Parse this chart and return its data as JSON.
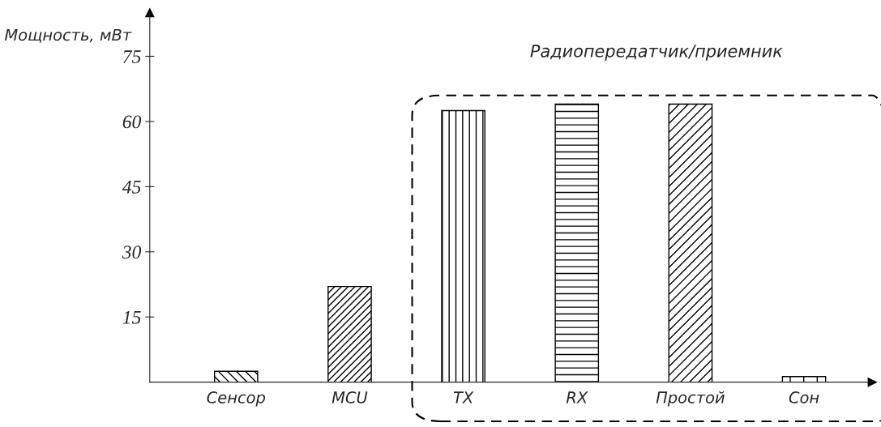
{
  "chart_data": {
    "type": "bar",
    "ylabel": "Мощность, мВт",
    "categories": [
      "Сенсор",
      "MCU",
      "TX",
      "RX",
      "Простой",
      "Сон"
    ],
    "values": [
      2.5,
      22,
      62.5,
      64,
      64,
      1.3
    ],
    "color": "#000000",
    "ylim": [
      0,
      85
    ],
    "yticks": [
      15,
      30,
      45,
      60,
      75
    ],
    "grid": false,
    "legend": false,
    "annotations": [
      "Радиопередатчик/приемник"
    ]
  }
}
